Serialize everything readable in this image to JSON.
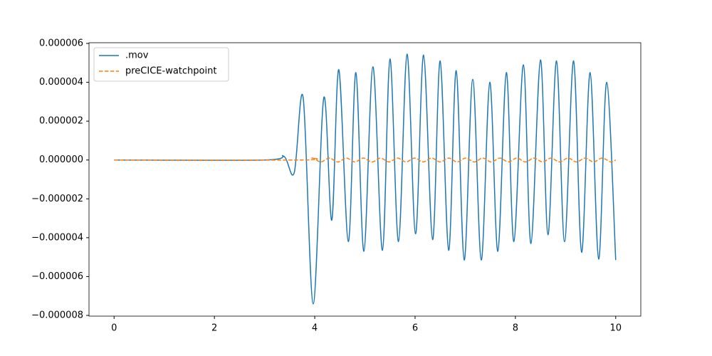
{
  "chart_data": {
    "type": "line",
    "xlim": [
      -0.5,
      10.5
    ],
    "xticks": [
      0,
      2,
      4,
      6,
      8,
      10
    ],
    "ylim": [
      -8e-06,
      6e-06
    ],
    "yticks": [
      {
        "value": -8e-06,
        "label": "−0.000008"
      },
      {
        "value": -6e-06,
        "label": "−0.000006"
      },
      {
        "value": -4e-06,
        "label": "−0.000004"
      },
      {
        "value": -2e-06,
        "label": "−0.000002"
      },
      {
        "value": 0,
        "label": "0.000000"
      },
      2e-06,
      4e-06,
      6e-06
    ],
    "legend": "upper left",
    "series": [
      {
        "name": ".mov",
        "color": "#1f77b4",
        "dash": "solid",
        "x": [
          0,
          3.0,
          3.38,
          3.59,
          3.77,
          3.97,
          4.18,
          4.34,
          4.48,
          4.67,
          4.82,
          4.98,
          5.16,
          5.35,
          5.5,
          5.67,
          5.84,
          6.01,
          6.17,
          6.35,
          6.5,
          6.67,
          6.82,
          6.98,
          7.15,
          7.32,
          7.49,
          7.65,
          7.82,
          7.97,
          8.16,
          8.31,
          8.5,
          8.65,
          8.82,
          8.98,
          9.16,
          9.32,
          9.49,
          9.66,
          9.82,
          10
        ],
        "values": [
          0,
          0,
          2e-07,
          -6.6e-07,
          3.2e-06,
          -7.4e-06,
          3.2e-06,
          -3.1e-06,
          4.65e-06,
          -4.2e-06,
          4.5e-06,
          -4.7e-06,
          4.8e-06,
          -4.65e-06,
          5.2e-06,
          -4.2e-06,
          5.45e-06,
          -3.8e-06,
          5.4e-06,
          -4.1e-06,
          5.1e-06,
          -4.65e-06,
          4.6e-06,
          -5.15e-06,
          4.15e-06,
          -5.15e-06,
          4e-06,
          -4.7e-06,
          4.5e-06,
          -4.2e-06,
          4.9e-06,
          -4.3e-06,
          5.15e-06,
          -3.85e-06,
          5.1e-06,
          -4.2e-06,
          5.1e-06,
          -4.75e-06,
          4.5e-06,
          -5.1e-06,
          4e-06,
          -5.15e-06
        ]
      },
      {
        "name": "preCICE-watchpoint",
        "color": "#ff7f0e",
        "dash": "dashed",
        "x": [
          0,
          3.7,
          3.95,
          4.12,
          4.29,
          4.46,
          4.63,
          4.8,
          4.97,
          5.14,
          5.31,
          5.48,
          5.65,
          5.82,
          5.99,
          6.16,
          6.33,
          6.5,
          6.67,
          6.84,
          7.01,
          7.18,
          7.35,
          7.52,
          7.69,
          7.86,
          8.03,
          8.2,
          8.37,
          8.54,
          8.71,
          8.88,
          9.05,
          9.22,
          9.39,
          9.56,
          9.73,
          9.9,
          10
        ],
        "values": [
          0,
          0,
          1e-07,
          -1e-07,
          1e-07,
          -1e-07,
          1e-07,
          -1e-07,
          1e-07,
          -1e-07,
          1e-07,
          -1e-07,
          1e-07,
          -1e-07,
          1e-07,
          -1e-07,
          1e-07,
          -1e-07,
          1e-07,
          -1e-07,
          1e-07,
          -1e-07,
          1e-07,
          -1e-07,
          1e-07,
          -1e-07,
          1e-07,
          -1e-07,
          1e-07,
          -1e-07,
          1e-07,
          -1e-07,
          1e-07,
          -1e-07,
          1e-07,
          -1e-07,
          1e-07,
          -1e-07,
          0
        ]
      }
    ]
  }
}
